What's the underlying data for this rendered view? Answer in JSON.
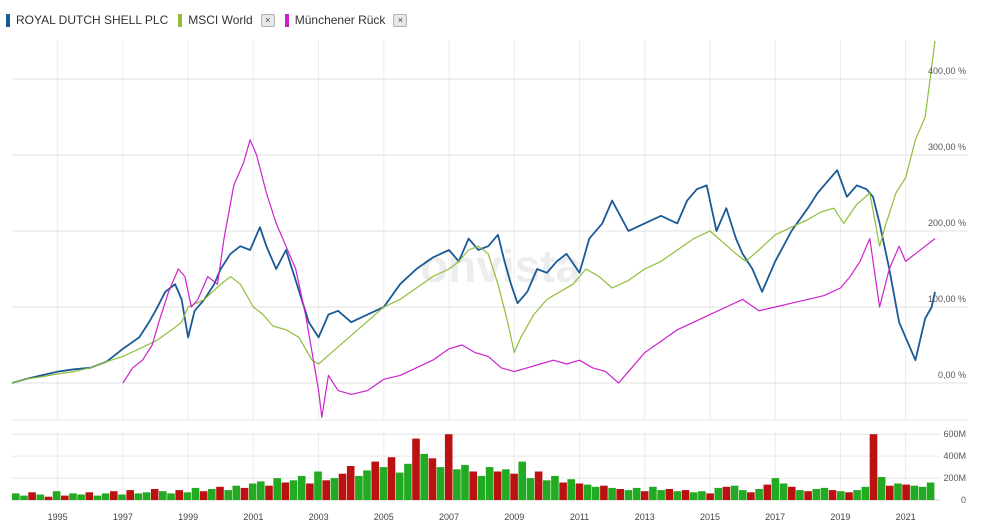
{
  "legend": [
    {
      "label": "ROYAL DUTCH SHELL PLC",
      "color": "#1a5a96",
      "removable": false
    },
    {
      "label": "MSCI World",
      "color": "#8fbf3a",
      "removable": true
    },
    {
      "label": "Münchener Rück",
      "color": "#cc22cc",
      "removable": true
    }
  ],
  "close_glyph": "×",
  "watermark": "onvista",
  "chart_data": {
    "type": "line",
    "x_axis": {
      "ticks": [
        "1995",
        "1997",
        "1999",
        "2001",
        "2003",
        "2005",
        "2007",
        "2009",
        "2011",
        "2013",
        "2015",
        "2017",
        "2019",
        "2021"
      ],
      "range": [
        1993.6,
        2021.9
      ]
    },
    "y_axis": {
      "ticks": [
        "0,00 %",
        "100,00 %",
        "200,00 %",
        "300,00 %",
        "400,00 %"
      ],
      "unit": "%",
      "range": [
        -60,
        455
      ],
      "position": "right",
      "grid": true
    },
    "series": [
      {
        "name": "ROYAL DUTCH SHELL PLC",
        "color": "#1a5a96",
        "x": [
          1993.6,
          1994.0,
          1994.5,
          1995.0,
          1995.5,
          1996.0,
          1996.5,
          1997.0,
          1997.5,
          1997.8,
          1998.0,
          1998.3,
          1998.6,
          1998.8,
          1999.0,
          1999.2,
          1999.5,
          1999.8,
          2000.0,
          2000.3,
          2000.6,
          2000.9,
          2001.2,
          2001.4,
          2001.7,
          2002.0,
          2002.3,
          2002.7,
          2003.0,
          2003.3,
          2003.6,
          2004.0,
          2004.5,
          2005.0,
          2005.5,
          2006.0,
          2006.5,
          2007.0,
          2007.3,
          2007.6,
          2007.9,
          2008.2,
          2008.5,
          2008.7,
          2008.9,
          2009.1,
          2009.4,
          2009.7,
          2010.0,
          2010.3,
          2010.6,
          2011.0,
          2011.3,
          2011.7,
          2012.0,
          2012.5,
          2013.0,
          2013.5,
          2014.0,
          2014.3,
          2014.6,
          2014.9,
          2015.2,
          2015.5,
          2015.8,
          2016.0,
          2016.3,
          2016.6,
          2017.0,
          2017.5,
          2018.0,
          2018.3,
          2018.6,
          2018.9,
          2019.2,
          2019.5,
          2019.8,
          2020.0,
          2020.2,
          2020.5,
          2020.8,
          2021.0,
          2021.3,
          2021.6,
          2021.8,
          2021.9
        ],
        "y": [
          0,
          5,
          10,
          15,
          18,
          20,
          28,
          45,
          60,
          80,
          95,
          120,
          130,
          110,
          60,
          95,
          110,
          130,
          150,
          170,
          180,
          175,
          205,
          180,
          150,
          175,
          135,
          80,
          60,
          90,
          95,
          80,
          90,
          100,
          130,
          150,
          165,
          175,
          160,
          190,
          175,
          180,
          195,
          160,
          130,
          105,
          120,
          150,
          145,
          160,
          170,
          145,
          190,
          210,
          240,
          200,
          210,
          220,
          210,
          240,
          255,
          260,
          200,
          230,
          190,
          170,
          150,
          120,
          160,
          200,
          230,
          250,
          265,
          280,
          245,
          260,
          255,
          245,
          210,
          150,
          80,
          60,
          30,
          85,
          100,
          120
        ],
        "markers": []
      },
      {
        "name": "MSCI World",
        "color": "#8fbf3a",
        "x": [
          1993.6,
          1994.0,
          1994.5,
          1995.0,
          1995.5,
          1996.0,
          1996.5,
          1997.0,
          1997.5,
          1998.0,
          1998.5,
          1998.8,
          1999.0,
          1999.5,
          2000.0,
          2000.3,
          2000.6,
          2001.0,
          2001.3,
          2001.6,
          2002.0,
          2002.4,
          2002.8,
          2003.0,
          2003.4,
          2003.8,
          2004.2,
          2004.6,
          2005.0,
          2005.5,
          2006.0,
          2006.5,
          2007.0,
          2007.3,
          2007.6,
          2007.9,
          2008.2,
          2008.5,
          2008.8,
          2009.0,
          2009.2,
          2009.6,
          2010.0,
          2010.4,
          2010.8,
          2011.2,
          2011.6,
          2012.0,
          2012.5,
          2013.0,
          2013.5,
          2014.0,
          2014.5,
          2015.0,
          2015.4,
          2015.8,
          2016.1,
          2016.5,
          2017.0,
          2017.5,
          2018.0,
          2018.4,
          2018.8,
          2019.1,
          2019.5,
          2019.9,
          2020.2,
          2020.4,
          2020.7,
          2021.0,
          2021.3,
          2021.6,
          2021.9
        ],
        "y": [
          0,
          5,
          8,
          12,
          15,
          20,
          28,
          35,
          45,
          55,
          70,
          80,
          100,
          110,
          130,
          140,
          130,
          100,
          90,
          75,
          70,
          60,
          30,
          25,
          40,
          55,
          70,
          85,
          100,
          110,
          125,
          140,
          150,
          160,
          175,
          180,
          170,
          130,
          80,
          40,
          60,
          90,
          110,
          120,
          130,
          150,
          140,
          125,
          135,
          150,
          160,
          175,
          190,
          200,
          185,
          170,
          160,
          175,
          195,
          205,
          215,
          225,
          230,
          210,
          235,
          250,
          180,
          210,
          250,
          270,
          320,
          350,
          450
        ],
        "markers": []
      },
      {
        "name": "Münchener Rück",
        "color": "#cc22cc",
        "x": [
          1997.0,
          1997.3,
          1997.6,
          1997.9,
          1998.1,
          1998.4,
          1998.7,
          1998.9,
          1999.1,
          1999.3,
          1999.6,
          1999.9,
          2000.1,
          2000.4,
          2000.7,
          2000.9,
          2001.1,
          2001.4,
          2001.7,
          2002.0,
          2002.3,
          2002.6,
          2002.8,
          2003.0,
          2003.1,
          2003.3,
          2003.6,
          2004.0,
          2004.5,
          2005.0,
          2005.5,
          2006.0,
          2006.5,
          2007.0,
          2007.4,
          2007.8,
          2008.2,
          2008.6,
          2009.0,
          2009.4,
          2009.8,
          2010.2,
          2010.6,
          2011.0,
          2011.4,
          2011.8,
          2012.2,
          2012.6,
          2013.0,
          2013.5,
          2014.0,
          2014.5,
          2015.0,
          2015.5,
          2016.0,
          2016.5,
          2017.0,
          2017.5,
          2018.0,
          2018.5,
          2019.0,
          2019.3,
          2019.6,
          2019.9,
          2020.2,
          2020.5,
          2020.8,
          2021.0,
          2021.3,
          2021.6,
          2021.9
        ],
        "y": [
          0,
          20,
          30,
          50,
          80,
          120,
          150,
          140,
          100,
          110,
          140,
          130,
          190,
          260,
          290,
          320,
          300,
          250,
          210,
          180,
          150,
          90,
          40,
          -10,
          -45,
          10,
          -10,
          -15,
          -10,
          5,
          10,
          20,
          30,
          45,
          50,
          40,
          35,
          20,
          15,
          20,
          25,
          30,
          25,
          30,
          20,
          15,
          0,
          20,
          40,
          55,
          70,
          80,
          90,
          100,
          110,
          95,
          100,
          105,
          110,
          115,
          125,
          140,
          160,
          190,
          100,
          150,
          180,
          160,
          170,
          180,
          190
        ],
        "markers": []
      }
    ],
    "volume": {
      "y_ticks": [
        "0",
        "200M",
        "400M",
        "600M"
      ],
      "range": [
        0,
        620
      ],
      "colors": {
        "up": "#22aa22",
        "down": "#bb1111"
      },
      "bars": [
        60,
        40,
        70,
        50,
        30,
        80,
        40,
        60,
        50,
        70,
        40,
        60,
        80,
        50,
        90,
        60,
        70,
        100,
        80,
        60,
        90,
        70,
        110,
        80,
        100,
        120,
        90,
        130,
        110,
        150,
        170,
        130,
        200,
        160,
        180,
        220,
        150,
        260,
        180,
        200,
        240,
        310,
        220,
        270,
        350,
        300,
        390,
        250,
        330,
        560,
        420,
        380,
        300,
        600,
        280,
        320,
        260,
        220,
        300,
        260,
        280,
        240,
        350,
        200,
        260,
        180,
        220,
        160,
        190,
        150,
        140,
        120,
        130,
        110,
        100,
        90,
        110,
        80,
        120,
        90,
        100,
        80,
        90,
        70,
        80,
        60,
        110,
        120,
        130,
        90,
        70,
        100,
        140,
        200,
        150,
        120,
        90,
        80,
        100,
        110,
        90,
        80,
        70,
        90,
        120,
        600,
        210,
        130,
        150,
        140,
        130,
        120,
        160
      ],
      "bar_up": [
        1,
        1,
        0,
        1,
        0,
        1,
        0,
        1,
        1,
        0,
        1,
        1,
        0,
        1,
        0,
        1,
        1,
        0,
        1,
        1,
        0,
        1,
        1,
        0,
        1,
        0,
        1,
        1,
        0,
        1,
        1,
        0,
        1,
        0,
        1,
        1,
        0,
        1,
        0,
        1,
        0,
        0,
        1,
        1,
        0,
        1,
        0,
        1,
        1,
        0,
        1,
        0,
        1,
        0,
        1,
        1,
        0,
        1,
        1,
        0,
        1,
        0,
        1,
        1,
        0,
        1,
        1,
        0,
        1,
        0,
        1,
        1,
        0,
        1,
        0,
        1,
        1,
        0,
        1,
        1,
        0,
        1,
        0,
        1,
        1,
        0,
        1,
        0,
        1,
        1,
        0,
        1,
        0,
        1,
        1,
        0,
        1,
        0,
        1,
        1,
        0,
        1,
        0,
        1,
        1,
        0,
        1,
        0,
        1,
        0,
        1,
        1,
        1
      ]
    }
  }
}
